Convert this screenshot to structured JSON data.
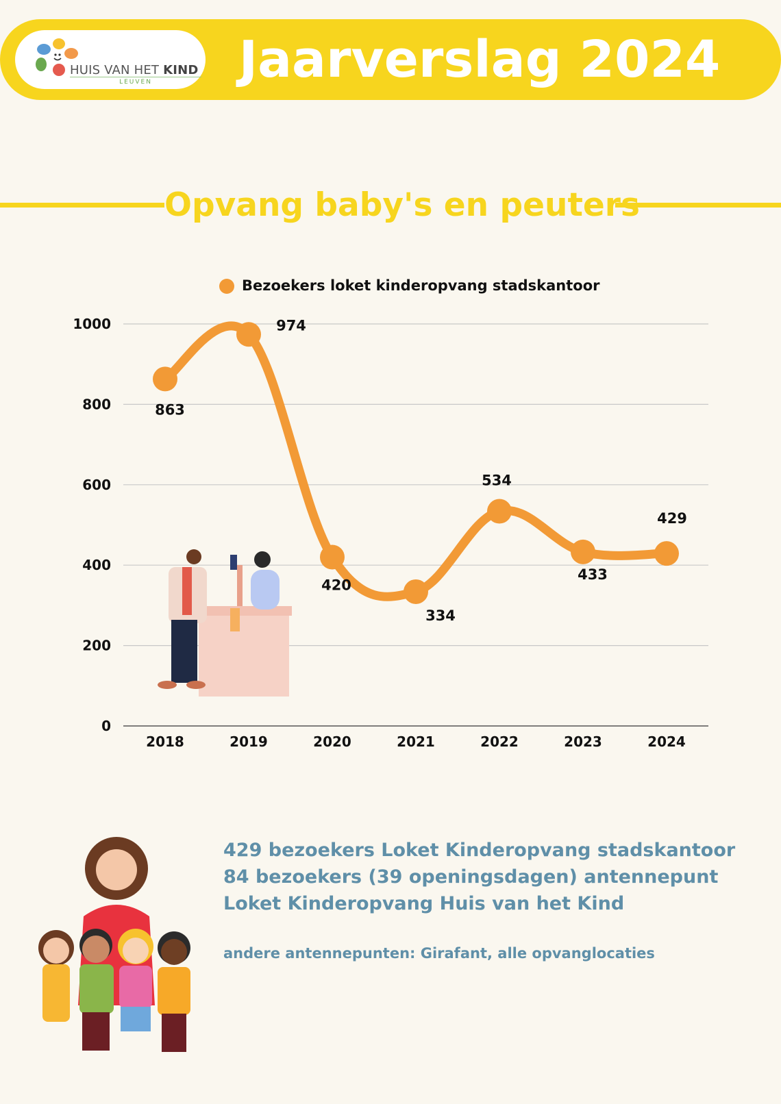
{
  "header": {
    "logo_name": "HUIS VAN HET",
    "logo_name_bold": "KIND",
    "logo_city": "LEUVEN",
    "title": "Jaarverslag 2024"
  },
  "section": {
    "title": "Opvang baby's en peuters"
  },
  "colors": {
    "accent_yellow": "#f7d51e",
    "series_orange": "#f29a36",
    "text_blue": "#5f8fa8"
  },
  "chart_data": {
    "type": "line",
    "x": [
      "2018",
      "2019",
      "2020",
      "2021",
      "2022",
      "2023",
      "2024"
    ],
    "series": [
      {
        "name": "Bezoekers loket kinderopvang stadskantoor",
        "values": [
          863,
          974,
          420,
          334,
          534,
          433,
          429
        ]
      }
    ],
    "yticks": [
      "0",
      "200",
      "400",
      "600",
      "800",
      "1000"
    ],
    "ylim": [
      0,
      1000
    ],
    "grid": true,
    "legend": "top-center",
    "data_labels": true
  },
  "stats": {
    "line1": "429 bezoekers Loket Kinderopvang stadskantoor",
    "line2": "84 bezoekers (39 openingsdagen) antennepunt Loket Kinderopvang Huis van het Kind",
    "note": "andere antennepunten: Girafant, alle opvanglocaties"
  }
}
